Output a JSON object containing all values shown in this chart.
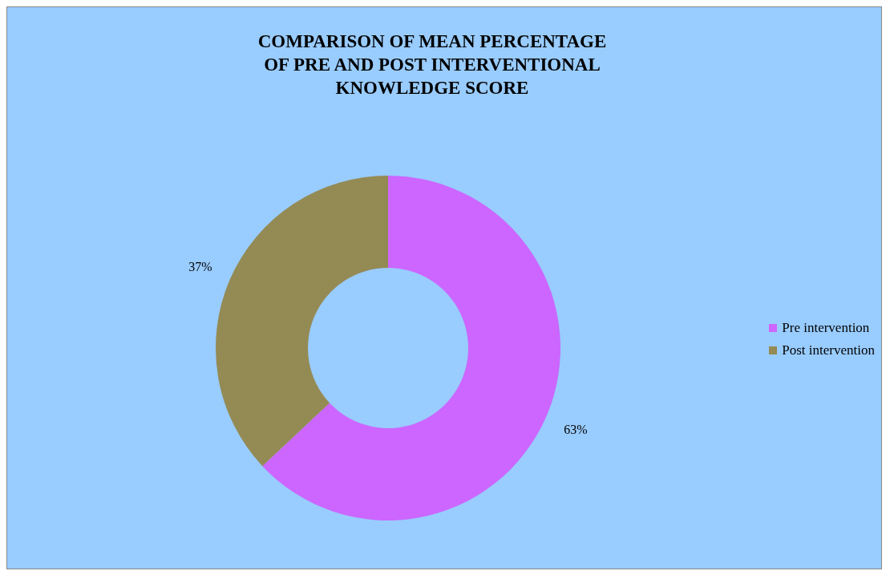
{
  "chart_data": {
    "type": "donut",
    "title": "COMPARISON OF MEAN PERCENTAGE OF PRE AND POST INTERVENTIONAL KNOWLEDGE SCORE",
    "categories": [
      "Pre intervention",
      "Post intervention"
    ],
    "values": [
      63,
      37
    ],
    "colors": [
      "#cc66ff",
      "#948a54"
    ],
    "value_labels": [
      "63%",
      "37%"
    ],
    "legend": "right"
  }
}
